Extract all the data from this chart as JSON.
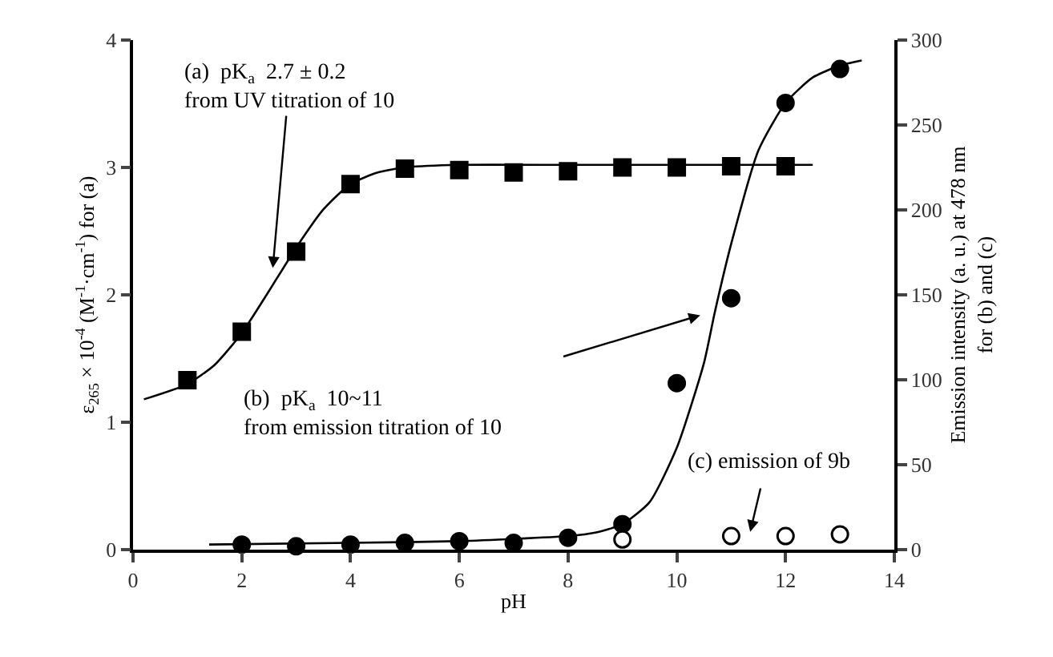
{
  "chart_data": {
    "type": "scatter",
    "xlabel": "pH",
    "ylabel": "ε$_{265}$ × 10$^{-4}$ (M$^{-1}$·cm$^{-1}$) for (a)",
    "y2label": "Emission intensity (a. u.) at 478 nm\nfor (b) and (c)",
    "xlim": [
      0,
      14
    ],
    "xticks": [
      0,
      2,
      4,
      6,
      8,
      10,
      12,
      14
    ],
    "ylim": [
      0,
      4
    ],
    "yticks": [
      0,
      1,
      2,
      3,
      4
    ],
    "y2lim": [
      0,
      300
    ],
    "y2ticks": [
      0,
      50,
      100,
      150,
      200,
      250,
      300
    ],
    "series": [
      {
        "marker": "square",
        "color": "#000000",
        "x": [
          1,
          2,
          3,
          4,
          5,
          6,
          7,
          8,
          9,
          10,
          11,
          12
        ],
        "values": [
          1.33,
          1.71,
          2.34,
          2.87,
          2.99,
          2.98,
          2.96,
          2.97,
          3.0,
          3.0,
          3.01,
          3.01
        ]
      },
      {
        "type": "line",
        "marker": "none",
        "color": "#000000",
        "x": [
          0.2,
          1,
          1.5,
          2,
          2.5,
          3,
          3.5,
          4,
          4.5,
          5,
          6,
          8,
          10,
          12.5
        ],
        "values": [
          1.18,
          1.3,
          1.45,
          1.7,
          2.03,
          2.37,
          2.67,
          2.87,
          2.96,
          3.0,
          3.02,
          3.02,
          3.02,
          3.02
        ]
      },
      {
        "marker": "circle",
        "color": "#000000",
        "axis": "y2",
        "x": [
          2,
          3,
          4,
          5,
          6,
          7,
          8,
          9,
          10,
          11,
          12,
          13
        ],
        "values": [
          3,
          2,
          3,
          4,
          5,
          4,
          7,
          15,
          98,
          148,
          263,
          283
        ]
      },
      {
        "type": "line",
        "marker": "none",
        "color": "#000000",
        "axis": "y2",
        "x": [
          1.4,
          4,
          6,
          8,
          8.5,
          9,
          9.5,
          10,
          10.5,
          10.7,
          11,
          11.5,
          12,
          12.5,
          13,
          13.4
        ],
        "values": [
          3,
          4,
          5,
          8,
          10,
          15,
          28,
          60,
          110,
          140,
          180,
          235,
          263,
          278,
          285,
          288
        ]
      },
      {
        "marker": "circle",
        "color": "#ffffff",
        "axis": "y2",
        "x": [
          9,
          11,
          12,
          13
        ],
        "values": [
          6,
          8,
          8,
          9
        ]
      }
    ],
    "annotations": [
      {
        "text": "(a)  pK$_{a}$  2.7 ± 0.2\nfrom UV titration of 10",
        "x": 2.57,
        "y": 2.21
      },
      "(b)  pK$_{a}$  10~11\nfrom emission titration of 10",
      "(c) emission of 9b"
    ]
  }
}
